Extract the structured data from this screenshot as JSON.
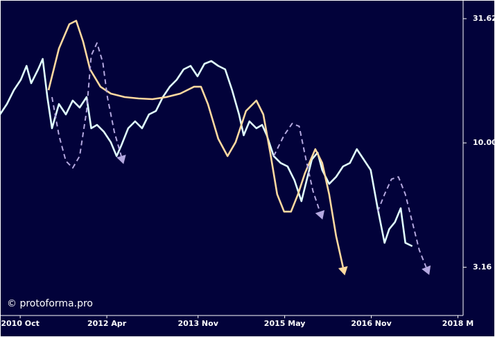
{
  "chart_data": {
    "type": "line",
    "log_scale": true,
    "background": "#02023a",
    "watermark": "© protoforma.pro",
    "xlim": [
      2010.4,
      2018.42
    ],
    "ylim": [
      2.02,
      37.6
    ],
    "xticks": [
      {
        "value": 2010.75,
        "label": "2010 Oct"
      },
      {
        "value": 2012.25,
        "label": "2012 Apr"
      },
      {
        "value": 2013.83,
        "label": "2013 Nov"
      },
      {
        "value": 2015.33,
        "label": "2015 May"
      },
      {
        "value": 2016.83,
        "label": "2016 Nov"
      },
      {
        "value": 2018.33,
        "label": "2018 M"
      }
    ],
    "yticks": [
      31.62,
      {
        "value": 10,
        "label": "10.00"
      },
      3.16
    ],
    "series": [
      {
        "color": "#e0ffff",
        "dash": false,
        "arrows": false,
        "x": [
          2010.4,
          2010.52,
          2010.64,
          2010.76,
          2010.86,
          2010.94,
          2011.06,
          2011.14,
          2011.22,
          2011.3,
          2011.42,
          2011.54,
          2011.66,
          2011.78,
          2011.9,
          2011.98,
          2012.08,
          2012.2,
          2012.32,
          2012.42,
          2012.5,
          2012.62,
          2012.74,
          2012.86,
          2012.98,
          2013.1,
          2013.22,
          2013.34,
          2013.46,
          2013.58,
          2013.7,
          2013.82,
          2013.94,
          2014.06,
          2014.18,
          2014.3,
          2014.42,
          2014.54,
          2014.62,
          2014.72,
          2014.84,
          2014.94,
          2015.02,
          2015.14,
          2015.26,
          2015.38,
          2015.5,
          2015.62,
          2015.68,
          2015.8,
          2015.9,
          2015.98,
          2016.1,
          2016.22,
          2016.34,
          2016.46,
          2016.58,
          2016.7,
          2016.82,
          2016.94,
          2017.06,
          2017.14,
          2017.24,
          2017.34,
          2017.42,
          2017.54
        ],
        "values": [
          13.02,
          14.34,
          16.31,
          17.96,
          20.42,
          17.39,
          19.78,
          21.78,
          15.29,
          11.45,
          14.34,
          13.02,
          14.81,
          13.88,
          15.29,
          11.45,
          11.82,
          11.08,
          10.06,
          8.85,
          9.75,
          11.45,
          12.21,
          11.45,
          13.02,
          13.44,
          15.29,
          16.83,
          17.96,
          19.78,
          20.42,
          18.54,
          20.82,
          21.36,
          20.42,
          19.78,
          16.31,
          13.02,
          10.73,
          12.21,
          11.45,
          11.82,
          10.73,
          8.85,
          8.3,
          8.04,
          7.07,
          5.83,
          6.63,
          8.57,
          9.14,
          7.78,
          6.84,
          7.3,
          8.04,
          8.3,
          9.44,
          8.57,
          7.78,
          5.46,
          3.96,
          4.5,
          4.8,
          5.46,
          3.96,
          3.84
        ]
      },
      {
        "color": "#ffd9a0",
        "dash": false,
        "arrows": true,
        "x": [
          2011.24,
          2011.42,
          2011.6,
          2011.72,
          2011.84,
          2011.96,
          2012.14,
          2012.32,
          2012.56,
          2012.8,
          2013.04,
          2013.28,
          2013.52,
          2013.76,
          2013.88,
          2014.0,
          2014.18,
          2014.34,
          2014.48,
          2014.66,
          2014.84,
          2014.96,
          2015.08,
          2015.2,
          2015.32,
          2015.44,
          2015.56,
          2015.68,
          2015.86,
          2015.98,
          2016.1,
          2016.22,
          2016.34
        ],
        "values": [
          16.31,
          23.98,
          30.04,
          31.02,
          25.57,
          19.78,
          16.83,
          15.79,
          15.29,
          15.1,
          15.0,
          15.29,
          15.79,
          16.83,
          16.83,
          14.34,
          10.39,
          8.85,
          10.06,
          13.44,
          14.81,
          13.02,
          9.14,
          6.21,
          5.29,
          5.29,
          6.21,
          7.54,
          9.44,
          8.3,
          6.21,
          4.22,
          3.16
        ]
      },
      {
        "color": "#b4a8e0",
        "dash": true,
        "arrows": true,
        "x": [
          2011.3,
          2011.42,
          2011.54,
          2011.66,
          2011.78,
          2011.9,
          2011.98,
          2012.08,
          2012.18,
          2012.26,
          2012.38,
          2012.5,
          2014.0,
          2015.14,
          2015.32,
          2015.46,
          2015.58,
          2015.7,
          2015.82,
          2015.94,
          2016.4,
          2016.94,
          2017.06,
          2017.18,
          2017.3,
          2017.42,
          2017.54,
          2017.66,
          2017.78
        ],
        "values": [
          15.29,
          10.73,
          8.46,
          7.93,
          8.85,
          13.44,
          22.49,
          25.25,
          21.09,
          15.29,
          11.08,
          8.85,
          null,
          8.85,
          10.73,
          11.97,
          11.67,
          8.57,
          6.41,
          5.29,
          null,
          5.29,
          6.21,
          7.15,
          7.3,
          6.21,
          4.8,
          3.71,
          3.16
        ]
      }
    ]
  }
}
